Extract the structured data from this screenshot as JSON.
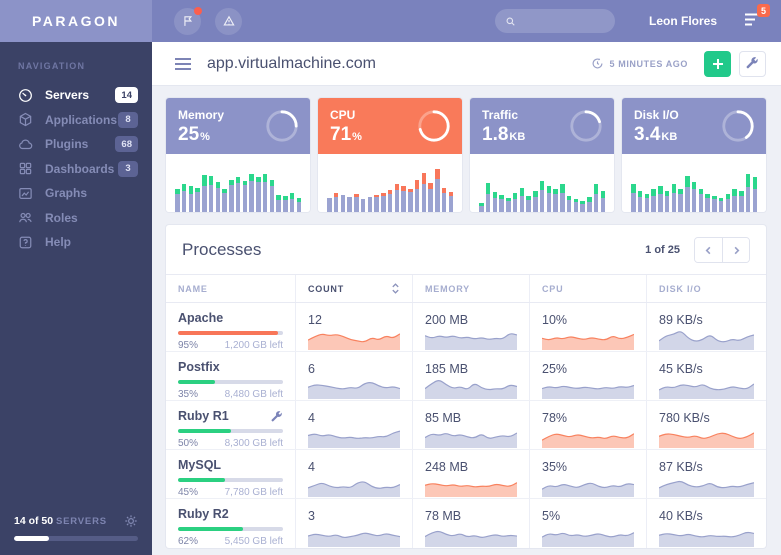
{
  "brand": "PARAGON",
  "colors": {
    "topbar": "#7a82bd",
    "sidebar": "#3b4266",
    "logo_band": "#8c93c8",
    "accent_green": "#21c98a",
    "accent_coral": "#f97a5a",
    "badge_red": "#fa6a4c",
    "bar_purple": "#9ba3d1"
  },
  "sidebar": {
    "section_label": "NAVIGATION",
    "items": [
      {
        "label": "Servers",
        "icon": "gauge-icon",
        "badge": "14",
        "active": true
      },
      {
        "label": "Applications",
        "icon": "package-icon",
        "badge": "8",
        "active": false
      },
      {
        "label": "Plugins",
        "icon": "cloud-icon",
        "badge": "68",
        "active": false
      },
      {
        "label": "Dashboards",
        "icon": "grid-icon",
        "badge": "3",
        "active": false
      },
      {
        "label": "Graphs",
        "icon": "chart-image-icon",
        "badge": null,
        "active": false
      },
      {
        "label": "Roles",
        "icon": "users-icon",
        "badge": null,
        "active": false
      },
      {
        "label": "Help",
        "icon": "help-icon",
        "badge": null,
        "active": false
      }
    ],
    "footer": {
      "count_text": "14 of 50",
      "label": "SERVERS",
      "progress_pct": 28
    }
  },
  "topbar": {
    "user": "Leon Flores",
    "notification_count": "5"
  },
  "page": {
    "title": "app.virtualmachine.com",
    "updated": "5 MINUTES AGO"
  },
  "cards": [
    {
      "label": "Memory",
      "value": "25",
      "unit": "%",
      "theme": "purple",
      "gauge_pct": 25,
      "bars": [
        [
          46,
          10
        ],
        [
          56,
          14
        ],
        [
          52,
          16
        ],
        [
          48,
          8
        ],
        [
          74,
          22
        ],
        [
          72,
          18
        ],
        [
          60,
          12
        ],
        [
          46,
          8
        ],
        [
          64,
          10
        ],
        [
          70,
          12
        ],
        [
          62,
          8
        ],
        [
          76,
          14
        ],
        [
          70,
          10
        ],
        [
          76,
          16
        ],
        [
          64,
          12
        ],
        [
          34,
          10
        ],
        [
          32,
          8
        ],
        [
          38,
          12
        ],
        [
          28,
          8
        ]
      ]
    },
    {
      "label": "CPU",
      "value": "71",
      "unit": "%",
      "theme": "coral",
      "gauge_pct": 71,
      "bars": [
        [
          28,
          0
        ],
        [
          38,
          8
        ],
        [
          34,
          0
        ],
        [
          30,
          0
        ],
        [
          36,
          6
        ],
        [
          26,
          0
        ],
        [
          30,
          0
        ],
        [
          34,
          4
        ],
        [
          38,
          6
        ],
        [
          44,
          8
        ],
        [
          56,
          12
        ],
        [
          52,
          10
        ],
        [
          46,
          6
        ],
        [
          64,
          18
        ],
        [
          78,
          22
        ],
        [
          58,
          12
        ],
        [
          86,
          20
        ],
        [
          48,
          10
        ],
        [
          40,
          8
        ]
      ]
    },
    {
      "label": "Traffic",
      "value": "1.8",
      "unit": "KB",
      "theme": "purple",
      "gauge_pct": 20,
      "bars": [
        [
          18,
          6
        ],
        [
          58,
          22
        ],
        [
          40,
          12
        ],
        [
          34,
          8
        ],
        [
          28,
          6
        ],
        [
          38,
          12
        ],
        [
          48,
          16
        ],
        [
          32,
          8
        ],
        [
          42,
          12
        ],
        [
          62,
          18
        ],
        [
          52,
          14
        ],
        [
          46,
          10
        ],
        [
          56,
          18
        ],
        [
          32,
          8
        ],
        [
          26,
          6
        ],
        [
          22,
          6
        ],
        [
          30,
          10
        ],
        [
          56,
          20
        ],
        [
          42,
          14
        ]
      ]
    },
    {
      "label": "Disk I/O",
      "value": "3.4",
      "unit": "KB",
      "theme": "purple",
      "gauge_pct": 40,
      "bars": [
        [
          56,
          18
        ],
        [
          42,
          12
        ],
        [
          36,
          8
        ],
        [
          46,
          14
        ],
        [
          52,
          16
        ],
        [
          42,
          10
        ],
        [
          56,
          18
        ],
        [
          46,
          10
        ],
        [
          72,
          22
        ],
        [
          60,
          14
        ],
        [
          46,
          10
        ],
        [
          36,
          8
        ],
        [
          32,
          6
        ],
        [
          28,
          6
        ],
        [
          36,
          10
        ],
        [
          46,
          14
        ],
        [
          42,
          10
        ],
        [
          76,
          26
        ],
        [
          70,
          24
        ]
      ]
    }
  ],
  "processes": {
    "title": "Processes",
    "pagination": {
      "text": "1 of 25"
    },
    "columns": [
      {
        "label": "NAME",
        "sorted": false
      },
      {
        "label": "COUNT",
        "sorted": true
      },
      {
        "label": "MEMORY",
        "sorted": false
      },
      {
        "label": "CPU",
        "sorted": false
      },
      {
        "label": "DISK I/O",
        "sorted": false
      }
    ],
    "rows": [
      {
        "name": "Apache",
        "wrench": false,
        "progress_pct": 95,
        "progress_color": "coral",
        "pct_label": "95%",
        "left_label": "1,200 GB left",
        "metrics": [
          {
            "value": "12",
            "color": "coral",
            "points": [
              38,
              52,
              62,
              55,
              60,
              52,
              40,
              35,
              30,
              48,
              38,
              55,
              45,
              62
            ]
          },
          {
            "value": "200 MB",
            "color": "purple",
            "points": [
              55,
              45,
              55,
              48,
              55,
              45,
              50,
              42,
              48,
              40,
              45,
              42,
              65,
              58
            ]
          },
          {
            "value": "10%",
            "color": "coral",
            "points": [
              45,
              38,
              48,
              42,
              52,
              45,
              40,
              48,
              42,
              38,
              55,
              42,
              48,
              60
            ]
          },
          {
            "value": "89 KB/s",
            "color": "purple",
            "points": [
              35,
              55,
              60,
              75,
              45,
              32,
              40,
              60,
              35,
              30,
              42,
              35,
              50,
              58
            ]
          }
        ]
      },
      {
        "name": "Postfix",
        "wrench": false,
        "progress_pct": 35,
        "progress_color": "green",
        "pct_label": "35%",
        "left_label": "8,480 GB left",
        "metrics": [
          {
            "value": "6",
            "color": "purple",
            "points": [
              45,
              55,
              52,
              48,
              42,
              38,
              45,
              40,
              60,
              65,
              50,
              42,
              48,
              40
            ]
          },
          {
            "value": "185 MB",
            "color": "purple",
            "points": [
              40,
              60,
              75,
              55,
              40,
              48,
              35,
              62,
              42,
              35,
              40,
              38,
              55,
              48
            ]
          },
          {
            "value": "25%",
            "color": "purple",
            "points": [
              40,
              48,
              42,
              50,
              44,
              40,
              46,
              42,
              38,
              45,
              40,
              48,
              44,
              52
            ]
          },
          {
            "value": "45 KB/s",
            "color": "purple",
            "points": [
              35,
              48,
              42,
              55,
              52,
              45,
              58,
              40,
              35,
              38,
              48,
              42,
              38,
              58
            ]
          }
        ]
      },
      {
        "name": "Ruby R1",
        "wrench": true,
        "progress_pct": 50,
        "progress_color": "green",
        "pct_label": "50%",
        "left_label": "8,300 GB left",
        "metrics": [
          {
            "value": "4",
            "color": "purple",
            "points": [
              48,
              55,
              45,
              52,
              42,
              38,
              42,
              36,
              40,
              38,
              45,
              42,
              58,
              65
            ]
          },
          {
            "value": "85 MB",
            "color": "purple",
            "points": [
              40,
              55,
              48,
              58,
              45,
              52,
              42,
              38,
              55,
              35,
              42,
              48,
              42,
              58
            ]
          },
          {
            "value": "78%",
            "color": "coral",
            "points": [
              30,
              45,
              55,
              48,
              42,
              52,
              45,
              38,
              42,
              35,
              48,
              40,
              38,
              55
            ]
          },
          {
            "value": "780 KB/s",
            "color": "coral",
            "points": [
              45,
              55,
              52,
              45,
              40,
              48,
              35,
              42,
              55,
              58,
              45,
              35,
              42,
              58
            ]
          }
        ]
      },
      {
        "name": "MySQL",
        "wrench": false,
        "progress_pct": 45,
        "progress_color": "green",
        "pct_label": "45%",
        "left_label": "7,780 GB left",
        "metrics": [
          {
            "value": "4",
            "color": "purple",
            "points": [
              35,
              45,
              55,
              42,
              35,
              40,
              35,
              55,
              60,
              40,
              32,
              38,
              35,
              48
            ]
          },
          {
            "value": "248 MB",
            "color": "coral",
            "points": [
              45,
              52,
              48,
              42,
              48,
              40,
              45,
              38,
              42,
              40,
              50,
              44,
              40,
              55
            ]
          },
          {
            "value": "35%",
            "color": "purple",
            "points": [
              30,
              45,
              38,
              50,
              42,
              35,
              48,
              55,
              40,
              35,
              45,
              38,
              52,
              48
            ]
          },
          {
            "value": "87 KB/s",
            "color": "purple",
            "points": [
              35,
              48,
              55,
              62,
              45,
              38,
              42,
              55,
              38,
              35,
              42,
              38,
              48,
              55
            ]
          }
        ]
      },
      {
        "name": "Ruby R2",
        "wrench": false,
        "progress_pct": 62,
        "progress_color": "green",
        "pct_label": "62%",
        "left_label": "5,450 GB left",
        "metrics": [
          {
            "value": "3",
            "color": "purple",
            "points": [
              42,
              50,
              45,
              40,
              48,
              35,
              40,
              45,
              55,
              48,
              42,
              52,
              45,
              40
            ]
          },
          {
            "value": "78 MB",
            "color": "purple",
            "points": [
              40,
              55,
              62,
              48,
              42,
              52,
              38,
              45,
              35,
              42,
              48,
              40,
              45,
              42
            ]
          },
          {
            "value": "5%",
            "color": "purple",
            "points": [
              38,
              52,
              45,
              55,
              42,
              48,
              40,
              45,
              52,
              42,
              38,
              48,
              42,
              55
            ]
          },
          {
            "value": "40 KB/s",
            "color": "purple",
            "points": [
              45,
              52,
              48,
              42,
              50,
              42,
              38,
              45,
              40,
              42,
              38,
              45,
              58,
              52
            ]
          }
        ]
      }
    ]
  }
}
